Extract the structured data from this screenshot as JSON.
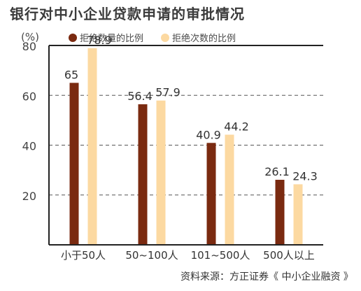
{
  "title": "银行对中小企业贷款申请的审批情况",
  "unit_label": "(%)",
  "source": "资料来源：方正证券《 中小企业融资 》",
  "colors": {
    "series1": "#7a2a10",
    "series2": "#fcd9a1",
    "grid": "#555555",
    "axis": "#222222"
  },
  "chart_data": {
    "type": "bar",
    "categories": [
      "小于50人",
      "50~100人",
      "101~500人",
      "500人以上"
    ],
    "series": [
      {
        "name": "拒绝数量的比例",
        "values": [
          65,
          56.4,
          40.9,
          26.1
        ]
      },
      {
        "name": "拒绝次数的比例",
        "values": [
          78.9,
          57.9,
          44.2,
          24.3
        ]
      }
    ],
    "data_labels": [
      [
        "65",
        "56.4",
        "40.9",
        "26.1"
      ],
      [
        "78.9",
        "57.9",
        "44.2",
        "24.3"
      ]
    ],
    "yticks": [
      "20",
      "40",
      "60",
      "80"
    ],
    "ylim": [
      0,
      80
    ],
    "grid": true,
    "legend": "top"
  }
}
